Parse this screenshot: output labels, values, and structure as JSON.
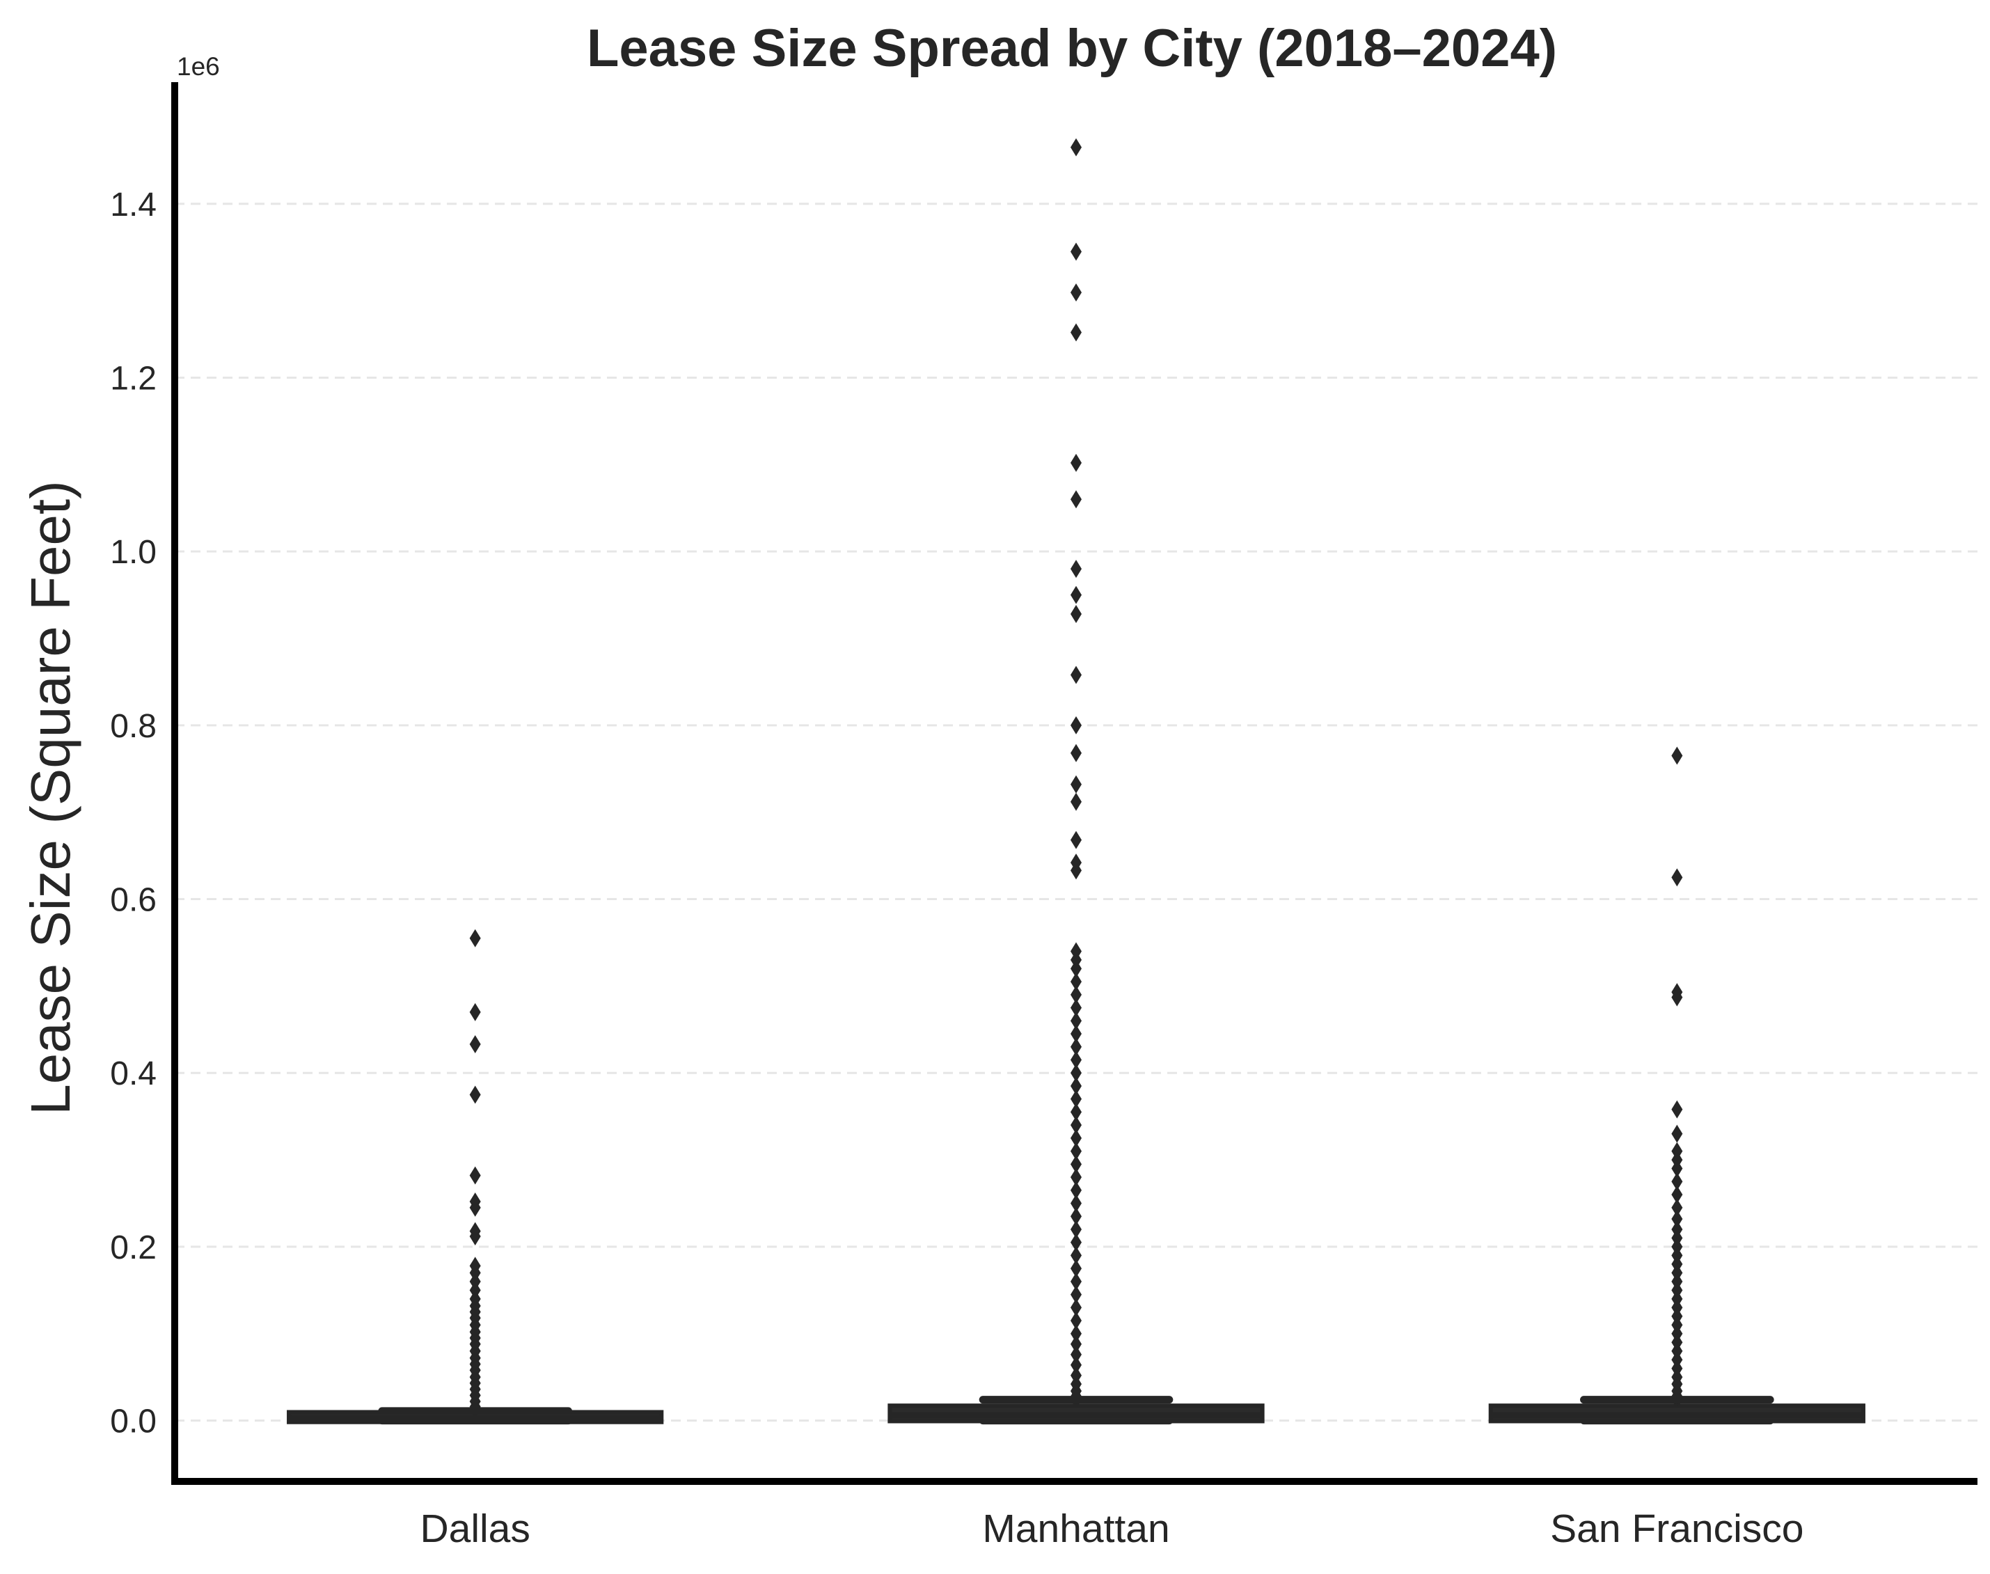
{
  "chart_data": {
    "type": "box",
    "title": "Lease Size Spread by City (2018–2024)",
    "xlabel": "",
    "ylabel": "Lease Size (Square Feet)",
    "y_offset_label": "1e6",
    "ylim": [
      -70000,
      1540000
    ],
    "yticks": [
      0,
      200000,
      400000,
      600000,
      800000,
      1000000,
      1200000,
      1400000
    ],
    "ytick_labels": [
      "0.0",
      "0.2",
      "0.4",
      "0.6",
      "0.8",
      "1.0",
      "1.2",
      "1.4"
    ],
    "grid": "horizontal dashed",
    "categories": [
      "Dallas",
      "Manhattan",
      "San Francisco"
    ],
    "boxes": [
      {
        "name": "Dallas",
        "whisker_low": 0,
        "q1": 1500,
        "median": 3000,
        "q3": 6500,
        "whisker_high": 11000,
        "outliers": [
          555000,
          470000,
          433000,
          375000,
          282000,
          252000,
          245000,
          218000,
          212000,
          178000,
          170000,
          160000,
          150000,
          140000,
          132000,
          125000,
          118000,
          110000,
          102000,
          95000,
          88000,
          80000,
          72000,
          65000,
          58000,
          50000,
          43000,
          36000,
          29000,
          22000,
          16000,
          13000
        ]
      },
      {
        "name": "Manhattan",
        "whisker_low": 0,
        "q1": 2500,
        "median": 6000,
        "q3": 14000,
        "whisker_high": 24000,
        "outliers": [
          1465000,
          1345000,
          1298000,
          1252000,
          1102000,
          1060000,
          980000,
          950000,
          928000,
          858000,
          800000,
          768000,
          732000,
          712000,
          668000,
          642000,
          633000,
          540000,
          530000,
          520000,
          505000,
          490000,
          475000,
          460000,
          445000,
          430000,
          415000,
          400000,
          385000,
          370000,
          355000,
          340000,
          325000,
          310000,
          295000,
          280000,
          265000,
          250000,
          235000,
          220000,
          205000,
          190000,
          175000,
          160000,
          145000,
          130000,
          115000,
          100000,
          88000,
          76000,
          64000,
          52000,
          42000,
          34000,
          28000
        ]
      },
      {
        "name": "San Francisco",
        "whisker_low": 0,
        "q1": 2500,
        "median": 6000,
        "q3": 14000,
        "whisker_high": 24000,
        "outliers": [
          765000,
          625000,
          493000,
          487000,
          358000,
          330000,
          310000,
          300000,
          290000,
          275000,
          260000,
          245000,
          232000,
          220000,
          210000,
          200000,
          190000,
          180000,
          170000,
          160000,
          150000,
          140000,
          130000,
          120000,
          110000,
          100000,
          90000,
          80000,
          70000,
          60000,
          50000,
          42000,
          34000,
          28000
        ]
      }
    ]
  }
}
